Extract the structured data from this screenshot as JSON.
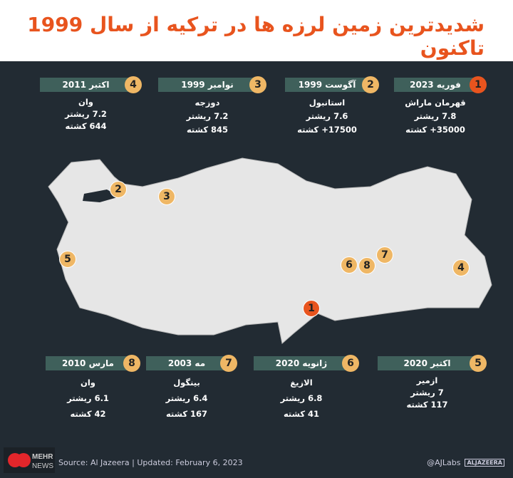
{
  "title": "شدیدترین زمین لرزه ها در ترکیه از سال 1999 تاکنون",
  "colors": {
    "title": "#e8541e",
    "background": "#222b33",
    "bar": "#3f605b",
    "marker": "#efb765",
    "marker_latest": "#e8541e",
    "land": "#e6e6e6"
  },
  "events": [
    {
      "num": "1",
      "date": "فوریه 2023",
      "place": "قهرمان ماراش",
      "magnitude": "7.8 ریشتر",
      "deaths": "35000+ کشته"
    },
    {
      "num": "2",
      "date": "آگوست 1999",
      "place": "استانبول",
      "magnitude": "7.6 ریشتر",
      "deaths": "17500+ کشته"
    },
    {
      "num": "3",
      "date": "نوامبر 1999",
      "place": "دوزجه",
      "magnitude": "7.2 ریشتر",
      "deaths": "845 کشته"
    },
    {
      "num": "4",
      "date": "اکتبر 2011",
      "place": "وان",
      "magnitude": "7.2 ریشتر",
      "deaths": "644 کشته"
    },
    {
      "num": "5",
      "date": "اکتبر 2020",
      "place": "ازمیر",
      "magnitude": "7 ریشتر",
      "deaths": "117 کشته"
    },
    {
      "num": "6",
      "date": "ژانویه 2020",
      "place": "الازیغ",
      "magnitude": "6.8 ریشتر",
      "deaths": "41 کشته"
    },
    {
      "num": "7",
      "date": "مه 2003",
      "place": "بینگول",
      "magnitude": "6.4 ریشتر",
      "deaths": "167 کشته"
    },
    {
      "num": "8",
      "date": "مارس 2010",
      "place": "وان",
      "magnitude": "6.1 ریشتر",
      "deaths": "42 کشته"
    }
  ],
  "footer": {
    "source": "Source: Al Jazeera  |  Updated: February 6, 2023",
    "handle": "@AJLabs",
    "aj_logo": "ALJAZEERA",
    "mehr_logo": "MEHR NEWS"
  }
}
